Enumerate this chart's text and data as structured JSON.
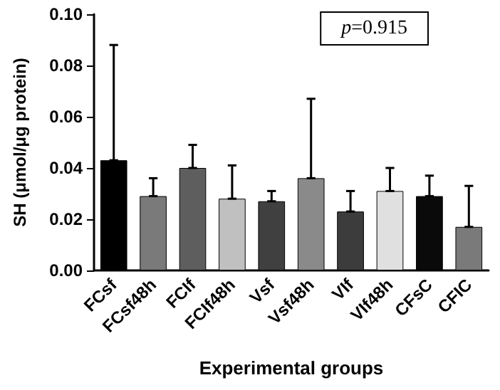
{
  "chart_data": {
    "type": "bar",
    "xlabel": "Experimental groups",
    "ylabel": "SH (μmol/μg protein)",
    "categories": [
      "FCsf",
      "FCsf48h",
      "FCIf",
      "FCIf48h",
      "Vsf",
      "Vsf48h",
      "VIf",
      "VIf48h",
      "CFsC",
      "CFIC"
    ],
    "values": [
      0.043,
      0.029,
      0.04,
      0.028,
      0.027,
      0.036,
      0.023,
      0.031,
      0.029,
      0.017
    ],
    "colors": [
      "#000000",
      "#7a7a7a",
      "#5e5e5e",
      "#c0c0c0",
      "#404040",
      "#8a8a8a",
      "#3c3c3c",
      "#e0e0e0",
      "#0a0a0a",
      "#7a7a7a"
    ],
    "errors": [
      [
        0.043,
        0.088
      ],
      [
        0.029,
        0.036
      ],
      [
        0.04,
        0.049
      ],
      [
        0.028,
        0.041
      ],
      [
        0.027,
        0.031
      ],
      [
        0.036,
        0.067
      ],
      [
        0.023,
        0.031
      ],
      [
        0.031,
        0.04
      ],
      [
        0.029,
        0.037
      ],
      [
        0.017,
        0.033
      ]
    ],
    "ylim": [
      0,
      0.1
    ],
    "yticks": [
      {
        "value": 0,
        "label": "0.00"
      },
      {
        "value": 0.02,
        "label": "0.02"
      },
      {
        "value": 0.04,
        "label": "0.04"
      },
      {
        "value": 0.06,
        "label": "0.06"
      },
      {
        "value": 0.08,
        "label": "0.08"
      },
      {
        "value": 0.1,
        "label": "0.10"
      }
    ],
    "annotations": [
      "p=0.915"
    ],
    "grid": false
  }
}
